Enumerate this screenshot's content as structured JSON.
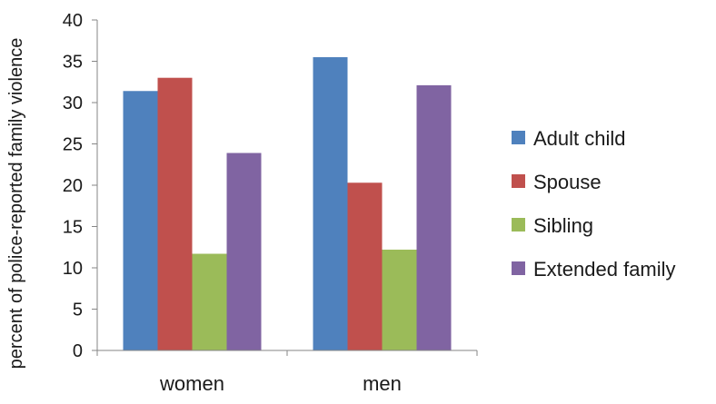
{
  "chart_data": {
    "type": "bar",
    "ylabel": "percent of police-reported family violence",
    "xlabel": "",
    "ylim": [
      0,
      40
    ],
    "yticks": [
      0,
      5,
      10,
      15,
      20,
      25,
      30,
      35,
      40
    ],
    "categories": [
      "women",
      "men"
    ],
    "grid": false,
    "legend": "right",
    "series": [
      {
        "name": "Adult child",
        "color": "#4F81BD",
        "values": [
          31.4,
          35.5
        ]
      },
      {
        "name": "Spouse",
        "color": "#C0504D",
        "values": [
          33.0,
          20.3
        ]
      },
      {
        "name": "Sibling",
        "color": "#9BBB59",
        "values": [
          11.7,
          12.2
        ]
      },
      {
        "name": "Extended family",
        "color": "#8064A2",
        "values": [
          23.9,
          32.1
        ]
      }
    ]
  }
}
